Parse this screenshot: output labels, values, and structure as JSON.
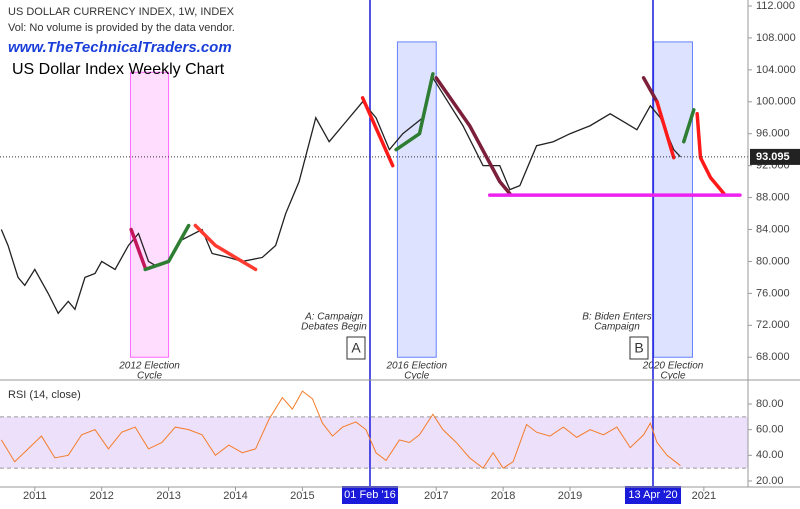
{
  "chart_data": [
    {
      "type": "line",
      "title": "US DOLLAR CURRENCY INDEX, 1W, INDEX",
      "subtitle": "Vol: No volume is provided by the data vendor.",
      "watermark": "www.TheTechnicalTraders.com",
      "heading": "US Dollar Index Weekly Chart",
      "color": "#222222",
      "x": [
        2010.5,
        2010.6,
        2010.75,
        2010.85,
        2011.0,
        2011.2,
        2011.35,
        2011.5,
        2011.6,
        2011.75,
        2011.9,
        2012.0,
        2012.2,
        2012.4,
        2012.55,
        2012.7,
        2012.8,
        2013.0,
        2013.15,
        2013.5,
        2013.65,
        2013.9,
        2014.1,
        2014.4,
        2014.6,
        2014.75,
        2014.95,
        2015.2,
        2015.4,
        2015.6,
        2015.9,
        2016.1,
        2016.3,
        2016.5,
        2016.8,
        2016.95,
        2017.1,
        2017.4,
        2017.7,
        2017.95,
        2018.1,
        2018.25,
        2018.5,
        2018.75,
        2019.0,
        2019.3,
        2019.6,
        2019.8,
        2020.0,
        2020.2,
        2020.35,
        2020.55,
        2020.65
      ],
      "values": [
        84,
        82,
        78,
        77,
        79,
        76,
        73.5,
        75,
        74,
        78,
        78.5,
        80,
        79,
        82,
        83.5,
        80,
        79.5,
        80,
        82.5,
        84,
        81,
        80.5,
        80,
        80.5,
        82,
        86,
        90,
        98,
        95,
        97,
        100,
        98,
        94,
        96,
        98,
        103,
        101,
        97,
        92,
        92,
        89,
        89.5,
        94.5,
        95,
        96,
        97,
        98.5,
        97.5,
        96.5,
        99.5,
        98,
        94,
        93.1
      ],
      "xlim": [
        2010.48,
        2021.66
      ],
      "ylim": [
        65.4,
        112.75
      ],
      "yticks": [
        {
          "value": 68,
          "label": "68.000"
        },
        {
          "value": 72,
          "label": "72.000"
        },
        {
          "value": 76,
          "label": "76.000"
        },
        {
          "value": 80,
          "label": "80.000"
        },
        {
          "value": 84,
          "label": "84.000"
        },
        {
          "value": 88,
          "label": "88.000"
        },
        {
          "value": 92,
          "label": "92.000"
        },
        {
          "value": 96,
          "label": "96.000"
        },
        {
          "value": 100,
          "label": "100.000"
        },
        {
          "value": 104,
          "label": "104.000"
        },
        {
          "value": 108,
          "label": "108.000"
        },
        {
          "value": 112,
          "label": "112.000"
        }
      ],
      "last_price": 93.095,
      "bands": [
        {
          "x0": 2012.43,
          "x1": 2013.0,
          "y0": 68,
          "y1": 103.7,
          "color": "#ff66ff",
          "label": [
            "2012 Election",
            "Cycle"
          ]
        },
        {
          "x0": 2016.42,
          "x1": 2017.0,
          "y0": 68,
          "y1": 107.5,
          "color": "#6680ff",
          "label": [
            "2016 Election",
            "Cycle"
          ]
        },
        {
          "x0": 2020.25,
          "x1": 2020.83,
          "y0": 68,
          "y1": 107.5,
          "color": "#6680ff",
          "label": [
            "2020 Election",
            "Cycle"
          ]
        }
      ],
      "vlines": [
        {
          "x": 2016.01,
          "date_label": "01 Feb '16",
          "note": [
            "A: Campaign",
            "Debates Begin"
          ],
          "marker": "A"
        },
        {
          "x": 2020.24,
          "date_label": "13 Apr '20",
          "note": [
            "B: Biden Enters",
            "Campaign"
          ],
          "marker": "B"
        }
      ],
      "drawings": [
        {
          "color": "#c2185b",
          "x": [
            2012.44,
            2012.65
          ],
          "y": [
            84,
            79.2
          ]
        },
        {
          "color": "#2e7d32",
          "x": [
            2012.65,
            2013.0,
            2013.3
          ],
          "y": [
            79,
            80,
            84.5
          ]
        },
        {
          "color": "#ff3b30",
          "x": [
            2013.4,
            2013.7,
            2014.1,
            2014.3
          ],
          "y": [
            84.5,
            82,
            80,
            79
          ]
        },
        {
          "color": "#ff1a1a",
          "x": [
            2015.9,
            2016.35
          ],
          "y": [
            100.5,
            92
          ]
        },
        {
          "color": "#2e7d32",
          "x": [
            2016.4,
            2016.75,
            2016.95
          ],
          "y": [
            94,
            96,
            103.5
          ]
        },
        {
          "color": "#7b1f3a",
          "x": [
            2017.0,
            2017.5,
            2017.95,
            2018.1
          ],
          "y": [
            103,
            97,
            90,
            88.5
          ]
        },
        {
          "color": "#7b1f3a",
          "x": [
            2020.1,
            2020.3
          ],
          "y": [
            103,
            100
          ]
        },
        {
          "color": "#ff1a1a",
          "x": [
            2020.3,
            2020.55
          ],
          "y": [
            100,
            93
          ]
        },
        {
          "color": "#2e7d32",
          "x": [
            2020.7,
            2020.85
          ],
          "y": [
            95,
            99
          ]
        },
        {
          "color": "#ff1a1a",
          "x": [
            2020.9,
            2020.95,
            2021.1,
            2021.3
          ],
          "y": [
            98.5,
            93,
            90.5,
            88.5
          ]
        },
        {
          "color": "#ee22ee",
          "x": [
            2017.8,
            2021.54
          ],
          "y": [
            88.3,
            88.3
          ]
        }
      ]
    },
    {
      "type": "line",
      "title": "RSI (14, close)",
      "color": "#f57c2a",
      "x": [
        2010.5,
        2010.7,
        2010.9,
        2011.1,
        2011.3,
        2011.5,
        2011.7,
        2011.9,
        2012.1,
        2012.3,
        2012.5,
        2012.7,
        2012.9,
        2013.1,
        2013.3,
        2013.5,
        2013.7,
        2013.9,
        2014.1,
        2014.3,
        2014.5,
        2014.7,
        2014.85,
        2015.0,
        2015.15,
        2015.3,
        2015.45,
        2015.6,
        2015.8,
        2015.95,
        2016.1,
        2016.25,
        2016.45,
        2016.6,
        2016.75,
        2016.95,
        2017.1,
        2017.3,
        2017.5,
        2017.7,
        2017.85,
        2018.0,
        2018.15,
        2018.35,
        2018.5,
        2018.7,
        2018.9,
        2019.1,
        2019.3,
        2019.5,
        2019.7,
        2019.9,
        2020.1,
        2020.2,
        2020.3,
        2020.45,
        2020.55,
        2020.65
      ],
      "values": [
        52,
        35,
        45,
        55,
        38,
        40,
        56,
        60,
        45,
        58,
        62,
        45,
        50,
        62,
        60,
        56,
        40,
        48,
        42,
        45,
        68,
        85,
        76,
        90,
        84,
        65,
        55,
        62,
        66,
        60,
        42,
        36,
        52,
        50,
        56,
        72,
        60,
        50,
        38,
        30,
        42,
        30,
        35,
        64,
        58,
        55,
        62,
        54,
        60,
        56,
        62,
        46,
        56,
        65,
        50,
        40,
        36,
        32
      ],
      "xlim": [
        2010.48,
        2021.66
      ],
      "ylim": [
        15.3,
        98.7
      ],
      "yticks": [
        {
          "value": 20,
          "label": "20.00"
        },
        {
          "value": 40,
          "label": "40.00"
        },
        {
          "value": 60,
          "label": "60.00"
        },
        {
          "value": 80,
          "label": "80.00"
        }
      ],
      "band": [
        30,
        70
      ],
      "xticks": [
        2011,
        2012,
        2013,
        2014,
        2015,
        2017,
        2018,
        2019,
        2021
      ]
    }
  ]
}
